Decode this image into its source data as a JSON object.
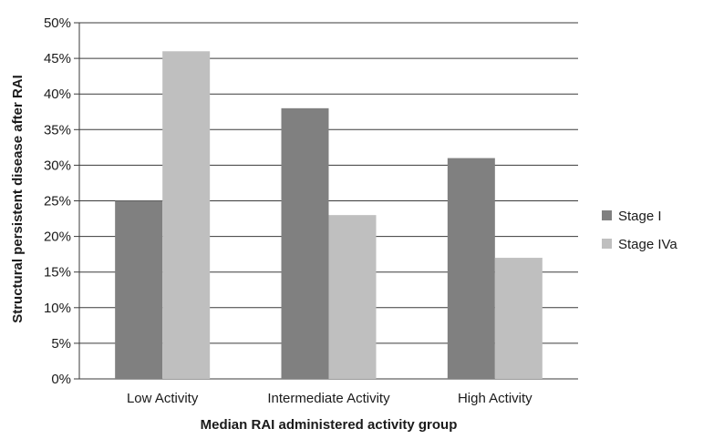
{
  "chart_data": {
    "type": "bar",
    "title": "",
    "xlabel": "Median RAI administered activity group",
    "ylabel": "Structural persistent disease after RAI",
    "categories": [
      "Low Activity",
      "Intermediate Activity",
      "High Activity"
    ],
    "series": [
      {
        "name": "Stage I",
        "values": [
          25,
          38,
          31
        ],
        "color": "#808080"
      },
      {
        "name": "Stage IVa",
        "values": [
          46,
          23,
          17
        ],
        "color": "#bfbfbf"
      }
    ],
    "ylim": [
      0,
      50
    ],
    "yticks": [
      "0%",
      "5%",
      "10%",
      "15%",
      "20%",
      "25%",
      "30%",
      "35%",
      "40%",
      "45%",
      "50%"
    ],
    "grid": "horizontal",
    "legend_position": "right"
  }
}
